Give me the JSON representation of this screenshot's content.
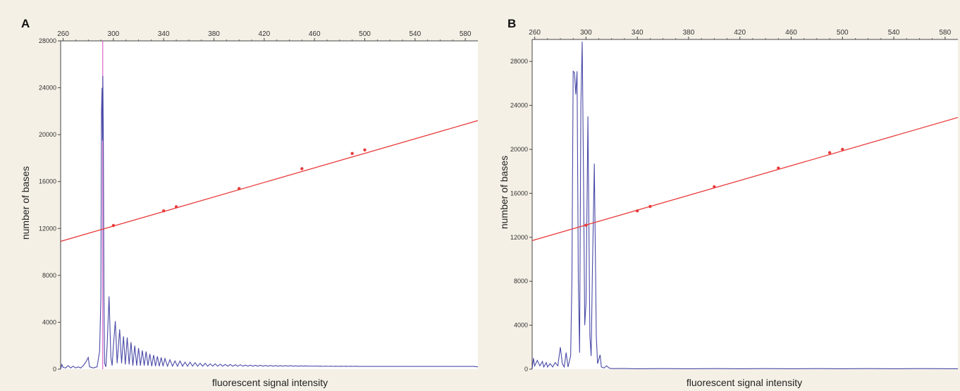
{
  "chart_data": [
    {
      "panel": "A",
      "type": "line",
      "xlabel": "fluorescent signal intensity",
      "ylabel": "number of bases",
      "xlim": [
        258,
        590
      ],
      "ylim": [
        0,
        28000
      ],
      "x_ticks": [
        "260",
        "300",
        "340",
        "380",
        "420",
        "460",
        "500",
        "540",
        "580"
      ],
      "y_ticks": [
        "0",
        "4000",
        "8000",
        "12000",
        "16000",
        "20000",
        "24000",
        "28000"
      ],
      "marker_line_x": 291.5,
      "series": [
        {
          "style": "signal",
          "color": "#4a4aa8",
          "points": [
            [
              258,
              0
            ],
            [
              259,
              400
            ],
            [
              260,
              150
            ],
            [
              262,
              100
            ],
            [
              264,
              300
            ],
            [
              266,
              100
            ],
            [
              268,
              250
            ],
            [
              270,
              100
            ],
            [
              272,
              200
            ],
            [
              274,
              100
            ],
            [
              276,
              300
            ],
            [
              278,
              600
            ],
            [
              280,
              1000
            ],
            [
              281,
              200
            ],
            [
              284,
              100
            ],
            [
              287,
              200
            ],
            [
              289,
              1500
            ],
            [
              290,
              6000
            ],
            [
              290.5,
              22000
            ],
            [
              291,
              24000
            ],
            [
              291.3,
              19500
            ],
            [
              291.6,
              25000
            ],
            [
              292,
              20000
            ],
            [
              292.5,
              6000
            ],
            [
              293,
              500
            ],
            [
              294,
              200
            ],
            [
              295,
              2000
            ],
            [
              296.5,
              6200
            ],
            [
              298,
              1000
            ],
            [
              299,
              300
            ],
            [
              300,
              2000
            ],
            [
              301.5,
              4100
            ],
            [
              303,
              500
            ],
            [
              305,
              3400
            ],
            [
              306.5,
              500
            ],
            [
              308,
              2800
            ],
            [
              309.5,
              400
            ],
            [
              311,
              2700
            ],
            [
              312.5,
              400
            ],
            [
              314,
              2300
            ],
            [
              315.5,
              300
            ],
            [
              317,
              2000
            ],
            [
              318.5,
              300
            ],
            [
              320,
              1800
            ],
            [
              321.5,
              300
            ],
            [
              323,
              1600
            ],
            [
              324.5,
              300
            ],
            [
              326,
              1500
            ],
            [
              327.5,
              300
            ],
            [
              329,
              1300
            ],
            [
              330.5,
              250
            ],
            [
              332,
              1200
            ],
            [
              333.5,
              250
            ],
            [
              335,
              1100
            ],
            [
              336.5,
              250
            ],
            [
              338,
              1000
            ],
            [
              339.5,
              250
            ],
            [
              341,
              900
            ],
            [
              343,
              250
            ],
            [
              345,
              800
            ],
            [
              347,
              250
            ],
            [
              349,
              700
            ],
            [
              351,
              250
            ],
            [
              353,
              700
            ],
            [
              355,
              250
            ],
            [
              357,
              600
            ],
            [
              359,
              250
            ],
            [
              361,
              600
            ],
            [
              363,
              250
            ],
            [
              365,
              550
            ],
            [
              367,
              250
            ],
            [
              369,
              500
            ],
            [
              371,
              250
            ],
            [
              373,
              500
            ],
            [
              375,
              250
            ],
            [
              377,
              450
            ],
            [
              379,
              250
            ],
            [
              381,
              450
            ],
            [
              383,
              250
            ],
            [
              385,
              420
            ],
            [
              387,
              250
            ],
            [
              389,
              400
            ],
            [
              391,
              250
            ],
            [
              393,
              400
            ],
            [
              395,
              250
            ],
            [
              397,
              380
            ],
            [
              399,
              250
            ],
            [
              401,
              380
            ],
            [
              403,
              250
            ],
            [
              405,
              350
            ],
            [
              407,
              250
            ],
            [
              409,
              350
            ],
            [
              411,
              250
            ],
            [
              413,
              330
            ],
            [
              415,
              250
            ],
            [
              417,
              330
            ],
            [
              419,
              250
            ],
            [
              421,
              320
            ],
            [
              423,
              250
            ],
            [
              425,
              320
            ],
            [
              427,
              250
            ],
            [
              429,
              300
            ],
            [
              431,
              250
            ],
            [
              433,
              300
            ],
            [
              435,
              250
            ],
            [
              437,
              300
            ],
            [
              439,
              250
            ],
            [
              441,
              300
            ],
            [
              443,
              250
            ],
            [
              445,
              280
            ],
            [
              447,
              250
            ],
            [
              449,
              280
            ],
            [
              451,
              250
            ],
            [
              453,
              280
            ],
            [
              455,
              250
            ],
            [
              457,
              270
            ],
            [
              459,
              250
            ],
            [
              461,
              270
            ],
            [
              463,
              250
            ],
            [
              465,
              260
            ],
            [
              467,
              240
            ],
            [
              469,
              260
            ],
            [
              471,
              240
            ],
            [
              473,
              260
            ],
            [
              475,
              240
            ],
            [
              477,
              250
            ],
            [
              479,
              240
            ],
            [
              481,
              250
            ],
            [
              483,
              240
            ],
            [
              485,
              250
            ],
            [
              487,
              240
            ],
            [
              489,
              250
            ],
            [
              491,
              240
            ],
            [
              493,
              250
            ],
            [
              495,
              230
            ],
            [
              497,
              240
            ],
            [
              499,
              230
            ],
            [
              501,
              240
            ],
            [
              503,
              230
            ],
            [
              505,
              240
            ],
            [
              507,
              230
            ],
            [
              509,
              240
            ],
            [
              511,
              230
            ],
            [
              513,
              240
            ],
            [
              515,
              230
            ],
            [
              517,
              240
            ],
            [
              519,
              230
            ],
            [
              521,
              240
            ],
            [
              523,
              230
            ],
            [
              525,
              240
            ],
            [
              527,
              230
            ],
            [
              529,
              240
            ],
            [
              531,
              230
            ],
            [
              533,
              240
            ],
            [
              535,
              230
            ],
            [
              537,
              240
            ],
            [
              539,
              230
            ],
            [
              541,
              240
            ],
            [
              543,
              230
            ],
            [
              545,
              240
            ],
            [
              547,
              230
            ],
            [
              549,
              240
            ],
            [
              551,
              230
            ],
            [
              553,
              240
            ],
            [
              555,
              230
            ],
            [
              557,
              240
            ],
            [
              559,
              230
            ],
            [
              561,
              240
            ],
            [
              563,
              230
            ],
            [
              565,
              240
            ],
            [
              567,
              230
            ],
            [
              569,
              240
            ],
            [
              571,
              230
            ],
            [
              573,
              240
            ],
            [
              575,
              230
            ],
            [
              577,
              240
            ],
            [
              579,
              230
            ],
            [
              581,
              240
            ],
            [
              583,
              230
            ],
            [
              585,
              240
            ],
            [
              587,
              230
            ],
            [
              590,
              200
            ]
          ]
        },
        {
          "style": "fit",
          "color": "#e83b3b",
          "line": [
            [
              258,
              10900
            ],
            [
              590,
              21200
            ]
          ],
          "points": [
            [
              300,
              12250
            ],
            [
              340,
              13500
            ],
            [
              350,
              13850
            ],
            [
              400,
              15400
            ],
            [
              450,
              17100
            ],
            [
              490,
              18400
            ],
            [
              500,
              18700
            ]
          ]
        }
      ]
    },
    {
      "panel": "B",
      "type": "line",
      "xlabel": "fluorescent signal intensity",
      "ylabel": "number of bases",
      "xlim": [
        258,
        590
      ],
      "ylim": [
        0,
        30000
      ],
      "x_ticks": [
        "260",
        "300",
        "340",
        "380",
        "420",
        "460",
        "500",
        "540",
        "580"
      ],
      "y_ticks": [
        "0",
        "4000",
        "8000",
        "12000",
        "16000",
        "20000",
        "24000",
        "28000"
      ],
      "series": [
        {
          "style": "signal",
          "color": "#4a4aa8",
          "points": [
            [
              258,
              0
            ],
            [
              259,
              1000
            ],
            [
              260,
              300
            ],
            [
              262,
              800
            ],
            [
              264,
              300
            ],
            [
              266,
              700
            ],
            [
              267,
              200
            ],
            [
              269,
              600
            ],
            [
              270,
              200
            ],
            [
              272,
              500
            ],
            [
              274,
              200
            ],
            [
              276,
              600
            ],
            [
              278,
              300
            ],
            [
              280,
              2000
            ],
            [
              281.5,
              500
            ],
            [
              283,
              200
            ],
            [
              284.5,
              1500
            ],
            [
              286,
              200
            ],
            [
              288,
              1200
            ],
            [
              289,
              8000
            ],
            [
              290,
              27100
            ],
            [
              291,
              27000
            ],
            [
              292,
              25000
            ],
            [
              293,
              27100
            ],
            [
              294,
              8000
            ],
            [
              295,
              1500
            ],
            [
              296,
              24000
            ],
            [
              297,
              29800
            ],
            [
              298,
              18000
            ],
            [
              299,
              4000
            ],
            [
              300,
              6000
            ],
            [
              301.5,
              23000
            ],
            [
              303,
              3000
            ],
            [
              304,
              1200
            ],
            [
              305,
              9000
            ],
            [
              306.5,
              18700
            ],
            [
              308,
              3000
            ],
            [
              309,
              500
            ],
            [
              311,
              1300
            ],
            [
              312,
              200
            ],
            [
              314,
              100
            ],
            [
              316,
              300
            ],
            [
              318,
              100
            ],
            [
              320,
              50
            ],
            [
              330,
              60
            ],
            [
              340,
              40
            ],
            [
              360,
              50
            ],
            [
              380,
              40
            ],
            [
              400,
              50
            ],
            [
              420,
              40
            ],
            [
              440,
              50
            ],
            [
              460,
              40
            ],
            [
              480,
              50
            ],
            [
              500,
              40
            ],
            [
              520,
              50
            ],
            [
              540,
              40
            ],
            [
              560,
              50
            ],
            [
              590,
              40
            ]
          ]
        },
        {
          "style": "fit",
          "color": "#e83b3b",
          "line": [
            [
              258,
              11700
            ],
            [
              590,
              22900
            ]
          ],
          "points": [
            [
              300,
              13100
            ],
            [
              340,
              14400
            ],
            [
              350,
              14800
            ],
            [
              400,
              16600
            ],
            [
              450,
              18300
            ],
            [
              490,
              19700
            ],
            [
              500,
              20000
            ]
          ]
        }
      ]
    }
  ]
}
